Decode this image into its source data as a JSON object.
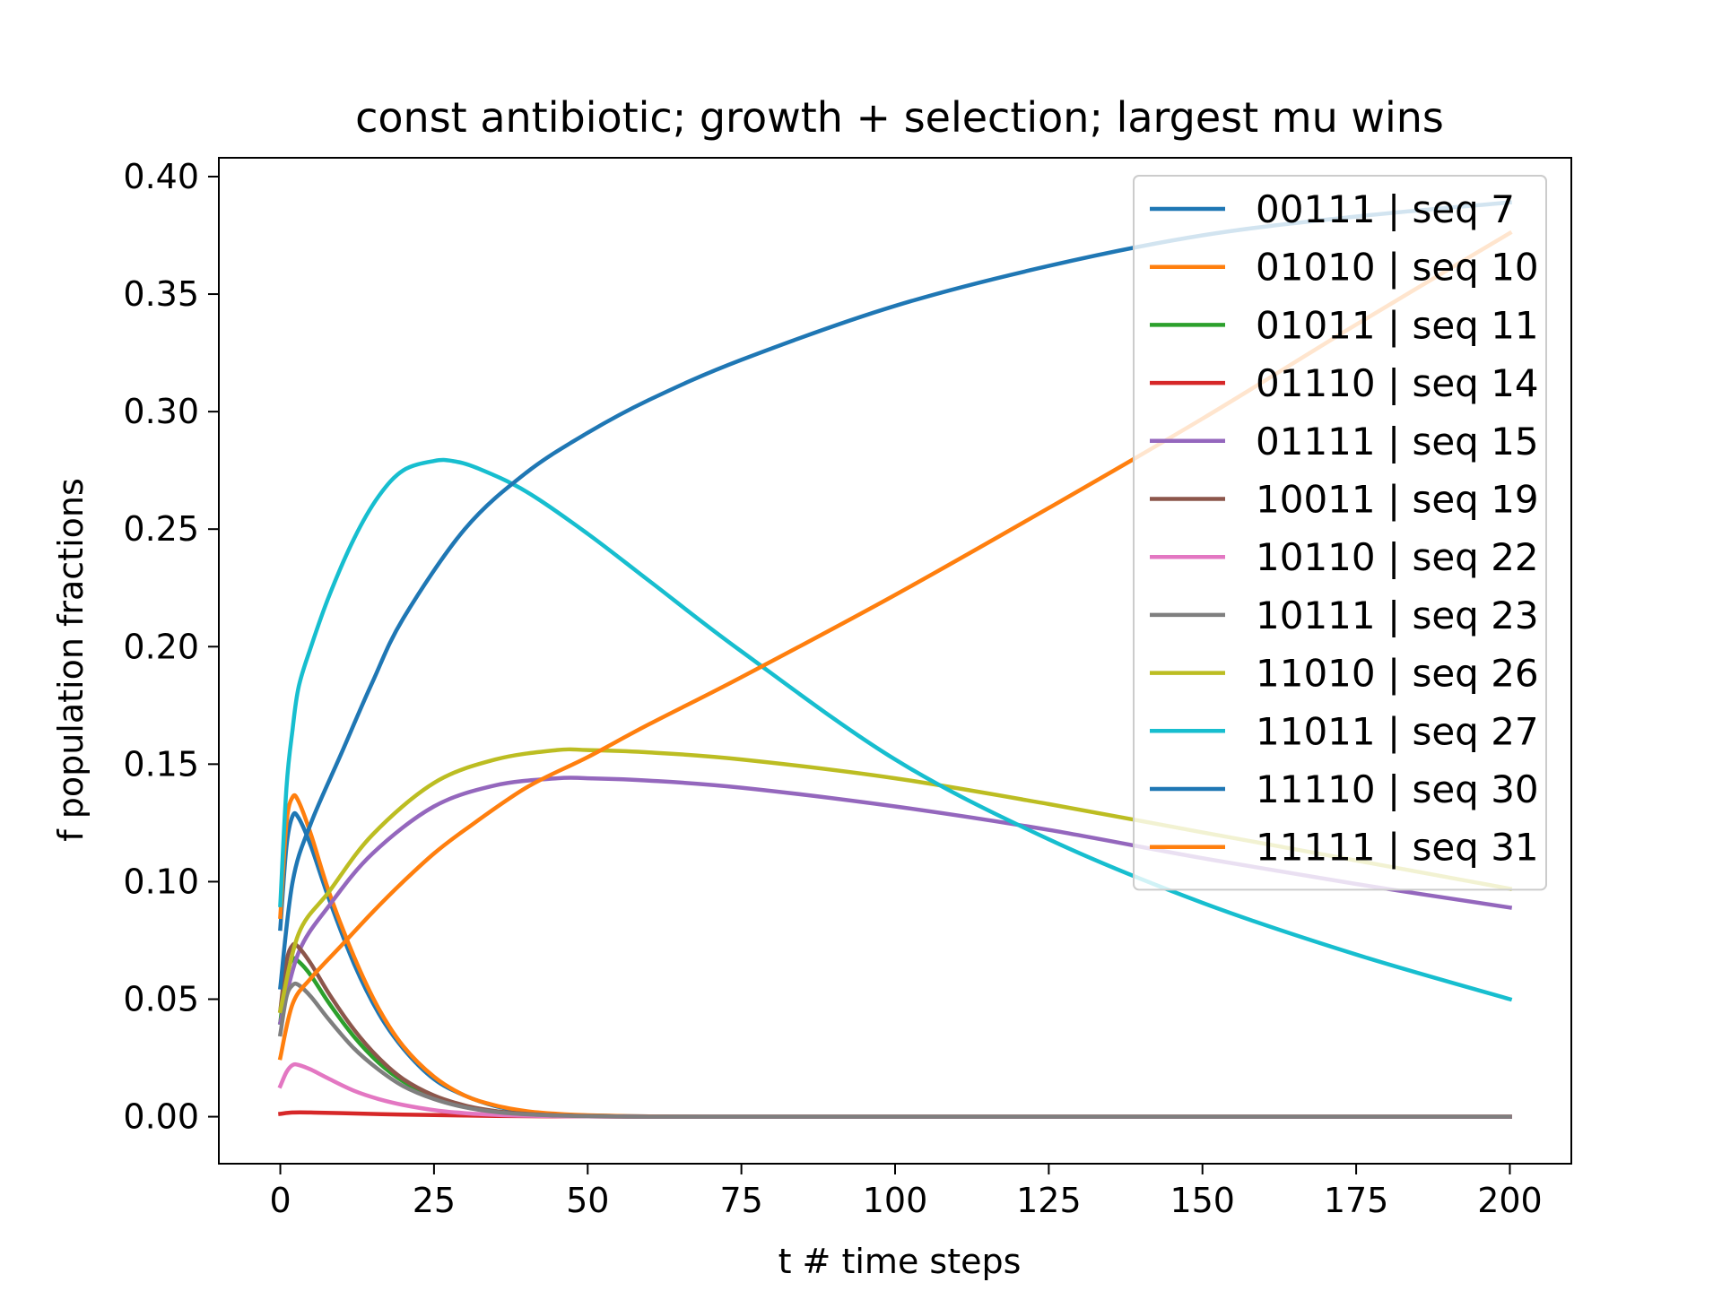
{
  "chart_data": {
    "type": "line",
    "title": "const antibiotic; growth + selection; largest mu wins",
    "xlabel": "t # time steps",
    "ylabel": "f population fractions",
    "xlim": [
      -10,
      210
    ],
    "ylim": [
      -0.02,
      0.408
    ],
    "xticks": [
      0,
      25,
      50,
      75,
      100,
      125,
      150,
      175,
      200
    ],
    "xtick_labels": [
      "0",
      "25",
      "50",
      "75",
      "100",
      "125",
      "150",
      "175",
      "200"
    ],
    "yticks": [
      0.0,
      0.05,
      0.1,
      0.15,
      0.2,
      0.25,
      0.3,
      0.35,
      0.4
    ],
    "ytick_labels": [
      "0.00",
      "0.05",
      "0.10",
      "0.15",
      "0.20",
      "0.25",
      "0.30",
      "0.35",
      "0.40"
    ],
    "legend_position": "top-right",
    "grid": false,
    "series": [
      {
        "name": "00111 | seq 7",
        "color": "#1f77b4",
        "x": [
          0,
          1,
          2,
          3,
          5,
          8,
          12,
          16,
          20,
          25,
          30,
          35,
          40,
          45,
          50,
          60,
          70,
          80,
          100,
          200
        ],
        "y": [
          0.08,
          0.115,
          0.128,
          0.127,
          0.115,
          0.092,
          0.065,
          0.044,
          0.029,
          0.016,
          0.009,
          0.0045,
          0.0022,
          0.0011,
          0.0005,
          0.0001,
          0,
          0,
          0,
          0
        ]
      },
      {
        "name": "01010 | seq 10",
        "color": "#ff7f0e",
        "x": [
          0,
          1,
          2,
          3,
          5,
          8,
          12,
          16,
          20,
          25,
          30,
          35,
          40,
          45,
          50,
          60,
          70,
          80,
          100,
          200
        ],
        "y": [
          0.085,
          0.125,
          0.136,
          0.134,
          0.12,
          0.095,
          0.068,
          0.046,
          0.03,
          0.017,
          0.009,
          0.0048,
          0.0024,
          0.0012,
          0.0006,
          0.0001,
          0,
          0,
          0,
          0
        ]
      },
      {
        "name": "01011 | seq 11",
        "color": "#2ca02c",
        "x": [
          0,
          1,
          2,
          3,
          5,
          8,
          12,
          16,
          20,
          25,
          30,
          35,
          40,
          45,
          50,
          60,
          70,
          80,
          100,
          200
        ],
        "y": [
          0.04,
          0.06,
          0.067,
          0.066,
          0.06,
          0.048,
          0.034,
          0.023,
          0.015,
          0.0085,
          0.0045,
          0.0023,
          0.0011,
          0.0005,
          0.0002,
          0,
          0,
          0,
          0,
          0
        ]
      },
      {
        "name": "01110 | seq 14",
        "color": "#d62728",
        "x": [
          0,
          2,
          5,
          10,
          20,
          30,
          40,
          50,
          60,
          80,
          200
        ],
        "y": [
          0.0012,
          0.0018,
          0.0018,
          0.0015,
          0.0009,
          0.0005,
          0.0002,
          0.0001,
          0,
          0,
          0
        ]
      },
      {
        "name": "01111 | seq 15",
        "color": "#9467bd",
        "x": [
          0,
          3,
          8,
          15,
          25,
          35,
          45,
          50,
          60,
          75,
          100,
          125,
          150,
          175,
          200
        ],
        "y": [
          0.04,
          0.07,
          0.09,
          0.112,
          0.132,
          0.141,
          0.144,
          0.144,
          0.143,
          0.14,
          0.132,
          0.122,
          0.11,
          0.099,
          0.089
        ]
      },
      {
        "name": "10011 | seq 19",
        "color": "#8c564b",
        "x": [
          0,
          1,
          2,
          3,
          5,
          8,
          12,
          16,
          20,
          25,
          30,
          35,
          40,
          45,
          50,
          60,
          70,
          80,
          100,
          200
        ],
        "y": [
          0.045,
          0.066,
          0.073,
          0.072,
          0.065,
          0.052,
          0.037,
          0.025,
          0.016,
          0.009,
          0.0048,
          0.0024,
          0.0012,
          0.0006,
          0.0003,
          0,
          0,
          0,
          0,
          0
        ]
      },
      {
        "name": "10110 | seq 22",
        "color": "#e377c2",
        "x": [
          0,
          1,
          2,
          3,
          5,
          8,
          12,
          16,
          20,
          25,
          30,
          35,
          40,
          50,
          60,
          80,
          200
        ],
        "y": [
          0.013,
          0.019,
          0.022,
          0.022,
          0.02,
          0.016,
          0.011,
          0.0075,
          0.005,
          0.0028,
          0.0015,
          0.0008,
          0.0004,
          0.0001,
          0,
          0,
          0
        ]
      },
      {
        "name": "10111 | seq 23",
        "color": "#7f7f7f",
        "x": [
          0,
          1,
          2,
          3,
          5,
          8,
          12,
          16,
          20,
          25,
          30,
          35,
          40,
          45,
          50,
          60,
          70,
          80,
          100,
          200
        ],
        "y": [
          0.035,
          0.051,
          0.056,
          0.056,
          0.051,
          0.041,
          0.029,
          0.02,
          0.013,
          0.0075,
          0.004,
          0.002,
          0.001,
          0.0005,
          0.0002,
          0,
          0,
          0,
          0,
          0
        ]
      },
      {
        "name": "11010 | seq 26",
        "color": "#bcbd22",
        "x": [
          0,
          3,
          8,
          15,
          25,
          35,
          45,
          50,
          60,
          75,
          100,
          125,
          150,
          175,
          200
        ],
        "y": [
          0.045,
          0.078,
          0.096,
          0.12,
          0.142,
          0.152,
          0.156,
          0.156,
          0.155,
          0.152,
          0.144,
          0.133,
          0.121,
          0.109,
          0.097
        ]
      },
      {
        "name": "11011 | seq 27",
        "color": "#17becf",
        "x": [
          0,
          1,
          2,
          3,
          5,
          8,
          12,
          16,
          20,
          25,
          28,
          32,
          40,
          50,
          60,
          75,
          100,
          125,
          150,
          175,
          200
        ],
        "y": [
          0.09,
          0.14,
          0.165,
          0.183,
          0.2,
          0.222,
          0.246,
          0.264,
          0.275,
          0.279,
          0.279,
          0.276,
          0.266,
          0.248,
          0.228,
          0.198,
          0.152,
          0.118,
          0.091,
          0.069,
          0.05
        ]
      },
      {
        "name": "11110 | seq 30",
        "color": "#1f77b4",
        "x": [
          0,
          2,
          5,
          10,
          15,
          20,
          30,
          40,
          50,
          60,
          75,
          100,
          125,
          150,
          175,
          200
        ],
        "y": [
          0.055,
          0.1,
          0.125,
          0.155,
          0.185,
          0.212,
          0.25,
          0.274,
          0.291,
          0.305,
          0.322,
          0.345,
          0.362,
          0.375,
          0.383,
          0.389
        ]
      },
      {
        "name": "11111 | seq 31",
        "color": "#ff7f0e",
        "x": [
          0,
          2,
          5,
          10,
          15,
          20,
          25,
          30,
          40,
          50,
          60,
          75,
          100,
          125,
          150,
          175,
          200
        ],
        "y": [
          0.025,
          0.048,
          0.059,
          0.073,
          0.087,
          0.1,
          0.112,
          0.122,
          0.14,
          0.153,
          0.167,
          0.187,
          0.222,
          0.259,
          0.297,
          0.337,
          0.376
        ]
      }
    ]
  }
}
